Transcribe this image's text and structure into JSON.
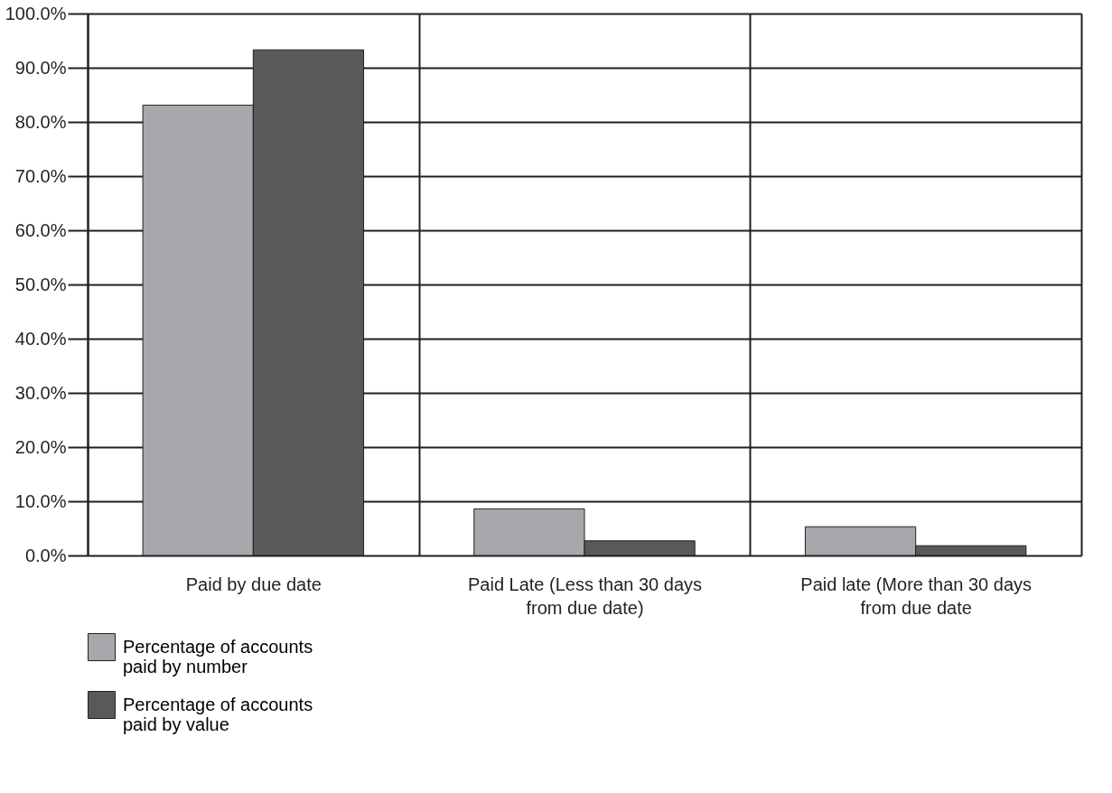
{
  "chart_data": {
    "type": "bar",
    "categories": [
      "Paid by due date",
      "Paid Late (Less than 30 days from due date)",
      "Paid late (More than 30 days from due date"
    ],
    "series": [
      {
        "name": "Percentage of accounts paid by number",
        "color": "#a7a8ab",
        "values": [
          83.1,
          8.6,
          5.3
        ]
      },
      {
        "name": "Percentage of accounts paid by value",
        "color": "#58595b",
        "values": [
          93.3,
          2.7,
          1.8
        ]
      }
    ],
    "ylim": [
      0,
      100
    ],
    "yticks": [
      {
        "value": 0,
        "label": "0.0%"
      },
      {
        "value": 10,
        "label": "10.0%"
      },
      {
        "value": 20,
        "label": "20.0%"
      },
      {
        "value": 30,
        "label": "30.0%"
      },
      {
        "value": 40,
        "label": "40.0%"
      },
      {
        "value": 50,
        "label": "50.0%"
      },
      {
        "value": 60,
        "label": "60.0%"
      },
      {
        "value": 70,
        "label": "70.0%"
      },
      {
        "value": 80,
        "label": "80.0%"
      },
      {
        "value": 90,
        "label": "90.0%"
      },
      {
        "value": 100,
        "label": "100.0%"
      }
    ],
    "grid": true,
    "legend": "bottom"
  }
}
